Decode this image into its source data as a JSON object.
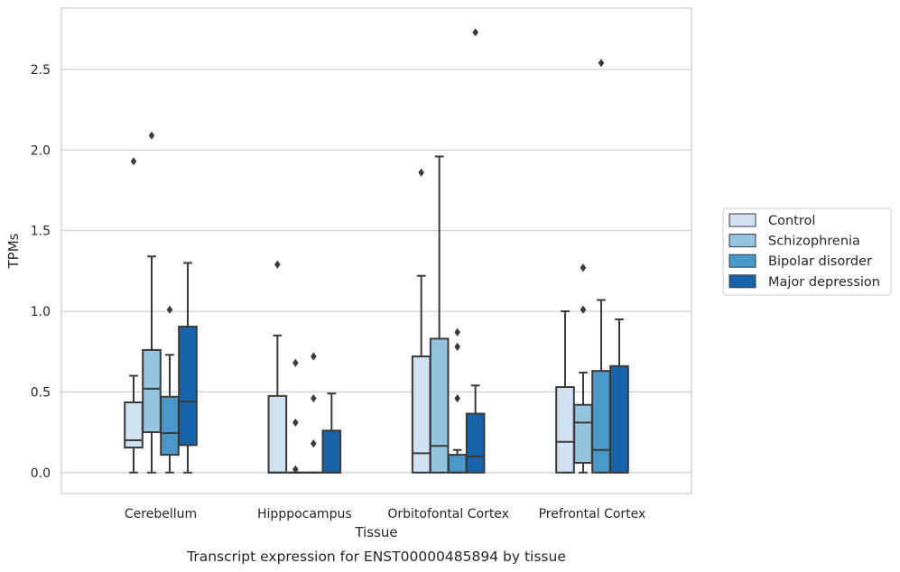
{
  "chart_data": {
    "type": "box",
    "caption": "Transcript expression for ENST00000485894 by tissue",
    "xlabel": "Tissue",
    "ylabel": "TPMs",
    "ylim": [
      -0.13,
      2.88
    ],
    "yticks": [
      "0.0",
      "0.5",
      "1.0",
      "1.5",
      "2.0",
      "2.5"
    ],
    "grid": true,
    "legend_position": "right",
    "categories": [
      "Cerebellum",
      "Hipppocampus",
      "Orbitofontal Cortex",
      "Prefrontal Cortex"
    ],
    "series": [
      {
        "name": "Control",
        "color": "#d0e1f2",
        "boxes": [
          {
            "wlo": 0.0,
            "q1": 0.155,
            "med": 0.2,
            "q3": 0.435,
            "whi": 0.6,
            "fliers": [
              1.93
            ]
          },
          {
            "wlo": 0.0,
            "q1": 0.0,
            "med": 0.0,
            "q3": 0.475,
            "whi": 0.85,
            "fliers": [
              1.29
            ]
          },
          {
            "wlo": 0.0,
            "q1": 0.0,
            "med": 0.12,
            "q3": 0.72,
            "whi": 1.22,
            "fliers": [
              1.86
            ]
          },
          {
            "wlo": 0.0,
            "q1": 0.0,
            "med": 0.19,
            "q3": 0.53,
            "whi": 1.0,
            "fliers": []
          }
        ]
      },
      {
        "name": "Schizophrenia",
        "color": "#94c4df",
        "boxes": [
          {
            "wlo": 0.0,
            "q1": 0.25,
            "med": 0.52,
            "q3": 0.76,
            "whi": 1.34,
            "fliers": [
              2.09
            ]
          },
          {
            "wlo": 0.0,
            "q1": 0.0,
            "med": 0.0,
            "q3": 0.0,
            "whi": 0.0,
            "fliers": [
              0.68,
              0.31,
              0.02
            ]
          },
          {
            "wlo": 0.0,
            "q1": 0.0,
            "med": 0.165,
            "q3": 0.83,
            "whi": 1.96,
            "fliers": []
          },
          {
            "wlo": 0.0,
            "q1": 0.06,
            "med": 0.31,
            "q3": 0.42,
            "whi": 0.62,
            "fliers": [
              1.27,
              1.01
            ]
          }
        ]
      },
      {
        "name": "Bipolar disorder",
        "color": "#4a98c9",
        "boxes": [
          {
            "wlo": 0.0,
            "q1": 0.11,
            "med": 0.245,
            "q3": 0.47,
            "whi": 0.73,
            "fliers": [
              1.01
            ]
          },
          {
            "wlo": 0.0,
            "q1": 0.0,
            "med": 0.0,
            "q3": 0.0,
            "whi": 0.0,
            "fliers": [
              0.72,
              0.46,
              0.18
            ]
          },
          {
            "wlo": 0.0,
            "q1": 0.0,
            "med": 0.0,
            "q3": 0.11,
            "whi": 0.14,
            "fliers": [
              0.87,
              0.78,
              0.46
            ]
          },
          {
            "wlo": 0.0,
            "q1": 0.0,
            "med": 0.14,
            "q3": 0.63,
            "whi": 1.07,
            "fliers": [
              2.54
            ]
          }
        ]
      },
      {
        "name": "Major depression",
        "color": "#1764ab",
        "boxes": [
          {
            "wlo": 0.0,
            "q1": 0.17,
            "med": 0.44,
            "q3": 0.905,
            "whi": 1.3,
            "fliers": []
          },
          {
            "wlo": 0.0,
            "q1": 0.0,
            "med": 0.0,
            "q3": 0.26,
            "whi": 0.49,
            "fliers": []
          },
          {
            "wlo": 0.0,
            "q1": 0.0,
            "med": 0.1,
            "q3": 0.365,
            "whi": 0.54,
            "fliers": [
              2.73
            ]
          },
          {
            "wlo": 0.0,
            "q1": 0.0,
            "med": 0.0,
            "q3": 0.66,
            "whi": 0.95,
            "fliers": []
          }
        ]
      }
    ]
  }
}
